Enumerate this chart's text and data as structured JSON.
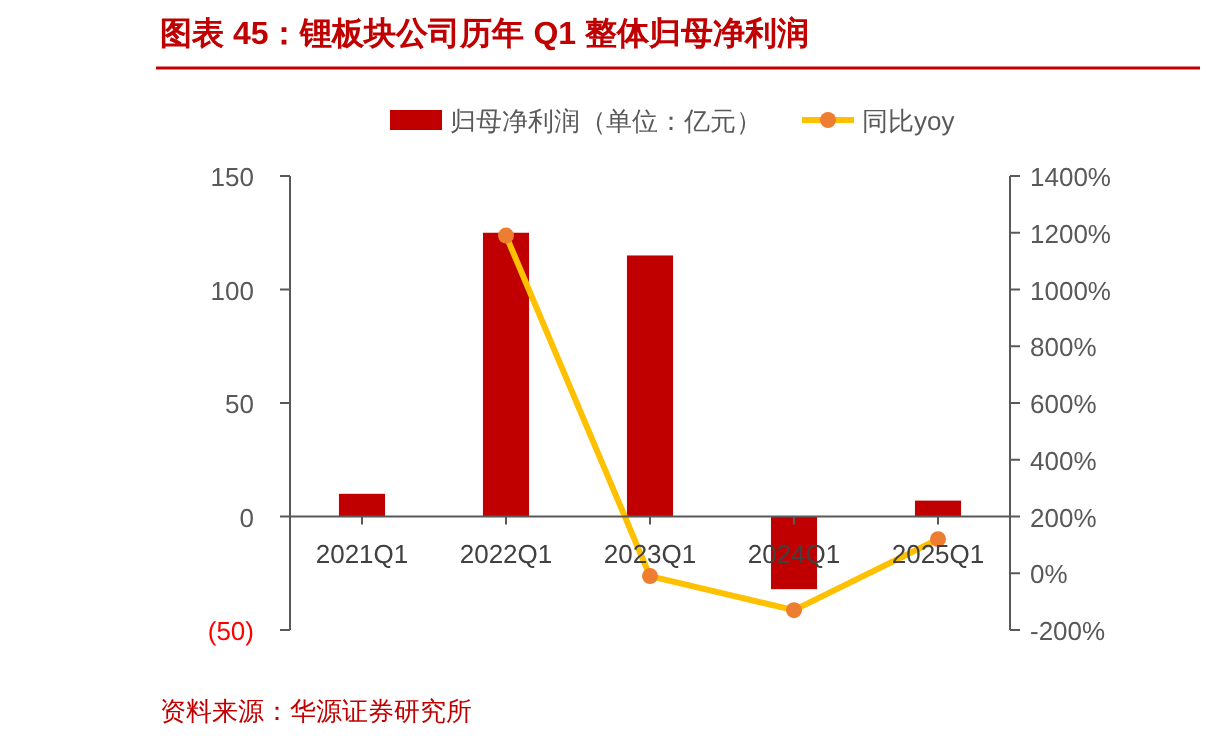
{
  "chart_data": {
    "type": "bar",
    "title": "图表 45：锂板块公司历年 Q1 整体归母净利润",
    "categories": [
      "2021Q1",
      "2022Q1",
      "2023Q1",
      "2024Q1",
      "2025Q1"
    ],
    "series": [
      {
        "name": "归母净利润（单位：亿元）",
        "color": "#c00000",
        "values": [
          10,
          125,
          115,
          -32,
          7
        ]
      },
      {
        "name": "同比yoy",
        "type": "line",
        "axis": "y2",
        "color": "#ffc000",
        "values": [
          null,
          1190,
          -10,
          -130,
          120
        ]
      }
    ],
    "ylim": [
      -50,
      150
    ],
    "yticks": [
      {
        "value": -50,
        "label": "(50)"
      },
      0,
      50,
      100,
      150
    ],
    "y2lim": [
      -200,
      1400
    ],
    "y2ticks": [
      {
        "value": -200,
        "label": "-200%"
      },
      {
        "value": 0,
        "label": "0%"
      },
      {
        "value": 200,
        "label": "200%"
      },
      {
        "value": 400,
        "label": "400%"
      },
      {
        "value": 600,
        "label": "600%"
      },
      {
        "value": 800,
        "label": "800%"
      },
      {
        "value": 1000,
        "label": "1000%"
      },
      {
        "value": 1200,
        "label": "1200%"
      },
      {
        "value": 1400,
        "label": "1400%"
      }
    ],
    "legend": "top",
    "grid": false,
    "marker": "circle",
    "annotations": [
      "资料来源：华源证券研究所"
    ]
  }
}
